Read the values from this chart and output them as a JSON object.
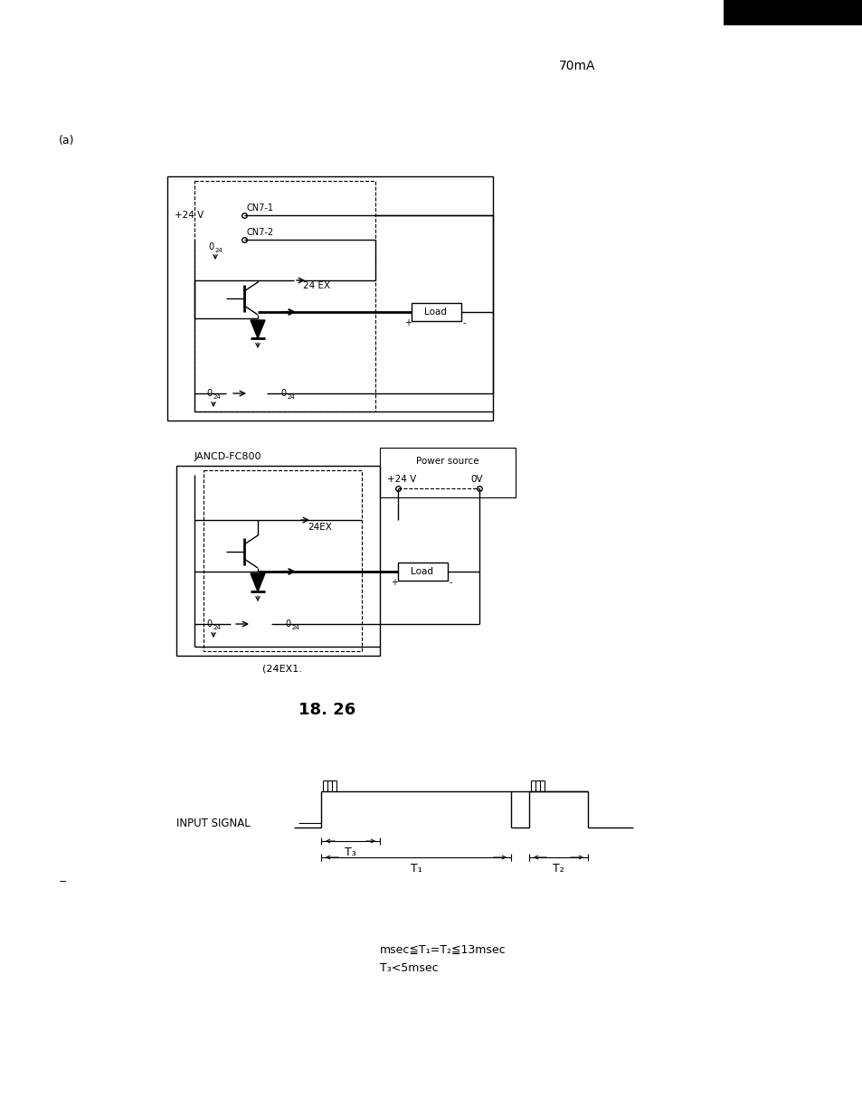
{
  "bg_color": "#ffffff",
  "text_color": "#000000",
  "page_label": "70mA",
  "section_a_label": "(a)",
  "caption_24EX": "(24EX1.",
  "section_title": "18. 26",
  "timing_label": "INPUT SIGNAL",
  "formula_line1": "msec≦T₁=T₂≦13msec",
  "formula_line2": "T₃<5msec"
}
